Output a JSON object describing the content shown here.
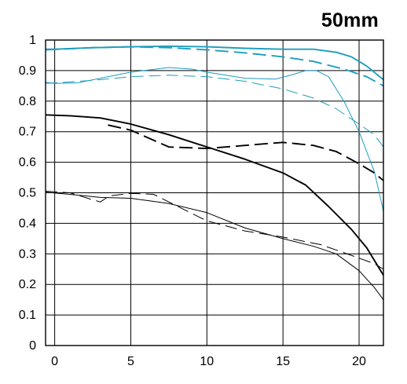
{
  "chart_data": {
    "type": "line",
    "title": "50mm",
    "xlabel": "",
    "ylabel": "",
    "xlim": [
      -0.6,
      21.6
    ],
    "ylim": [
      0,
      1.0
    ],
    "grid": true,
    "legend": "none",
    "x_ticks": [
      0,
      5,
      10,
      15,
      20
    ],
    "x_tick_labels": [
      "0",
      "5",
      "10",
      "15",
      "20"
    ],
    "y_ticks": [
      0,
      0.1,
      0.2,
      0.3,
      0.4,
      0.5,
      0.6,
      0.7,
      0.8,
      0.9,
      1.0
    ],
    "y_tick_labels": [
      "0",
      "0.1",
      "0.2",
      "0.3",
      "0.4",
      "0.5",
      "0.6",
      "0.7",
      "0.8",
      "0.9",
      "1"
    ],
    "colors": {
      "blue": "#1e9dbd",
      "black": "#000000",
      "grid": "#000000"
    },
    "series": [
      {
        "color": "blue",
        "style": "solid",
        "width": "thick",
        "points": [
          [
            -0.6,
            0.97
          ],
          [
            0,
            0.97
          ],
          [
            2.5,
            0.975
          ],
          [
            5,
            0.978
          ],
          [
            7.5,
            0.98
          ],
          [
            10,
            0.978
          ],
          [
            12.5,
            0.973
          ],
          [
            15,
            0.97
          ],
          [
            17,
            0.97
          ],
          [
            18.5,
            0.96
          ],
          [
            19.5,
            0.945
          ],
          [
            20.5,
            0.915
          ],
          [
            21.6,
            0.87
          ]
        ]
      },
      {
        "color": "blue",
        "style": "dashed",
        "width": "thick",
        "points": [
          [
            -0.6,
            0.968
          ],
          [
            2.5,
            0.975
          ],
          [
            5,
            0.978
          ],
          [
            7.5,
            0.975
          ],
          [
            10,
            0.968
          ],
          [
            12.5,
            0.958
          ],
          [
            15,
            0.945
          ],
          [
            17,
            0.93
          ],
          [
            19,
            0.905
          ],
          [
            20.5,
            0.88
          ],
          [
            21.6,
            0.85
          ]
        ]
      },
      {
        "color": "blue",
        "style": "solid",
        "width": "thin",
        "points": [
          [
            -0.6,
            0.862
          ],
          [
            0,
            0.858
          ],
          [
            1.5,
            0.86
          ],
          [
            3,
            0.875
          ],
          [
            5,
            0.895
          ],
          [
            7.5,
            0.91
          ],
          [
            9,
            0.905
          ],
          [
            10,
            0.895
          ],
          [
            12.5,
            0.875
          ],
          [
            14.5,
            0.872
          ],
          [
            15.5,
            0.885
          ],
          [
            16.5,
            0.9
          ],
          [
            17.2,
            0.9
          ],
          [
            18,
            0.88
          ],
          [
            19,
            0.8
          ],
          [
            20,
            0.7
          ],
          [
            21,
            0.57
          ],
          [
            21.6,
            0.44
          ]
        ]
      },
      {
        "color": "blue",
        "style": "dashed",
        "width": "thin",
        "points": [
          [
            -0.6,
            0.858
          ],
          [
            2.5,
            0.868
          ],
          [
            5,
            0.88
          ],
          [
            7.5,
            0.885
          ],
          [
            10,
            0.88
          ],
          [
            12.5,
            0.865
          ],
          [
            15,
            0.84
          ],
          [
            17,
            0.81
          ],
          [
            18.5,
            0.775
          ],
          [
            20,
            0.725
          ],
          [
            21,
            0.69
          ],
          [
            21.6,
            0.65
          ]
        ]
      },
      {
        "color": "black",
        "style": "solid",
        "width": "thick",
        "points": [
          [
            -0.6,
            0.755
          ],
          [
            1,
            0.752
          ],
          [
            3,
            0.745
          ],
          [
            5,
            0.725
          ],
          [
            7.5,
            0.69
          ],
          [
            10,
            0.65
          ],
          [
            12.5,
            0.61
          ],
          [
            15,
            0.565
          ],
          [
            16.5,
            0.525
          ],
          [
            18,
            0.455
          ],
          [
            19.5,
            0.38
          ],
          [
            20.5,
            0.32
          ],
          [
            21.6,
            0.23
          ]
        ]
      },
      {
        "color": "black",
        "style": "dashed",
        "width": "thick",
        "points": [
          [
            3.5,
            0.722
          ],
          [
            5,
            0.705
          ],
          [
            7.5,
            0.65
          ],
          [
            10,
            0.645
          ],
          [
            12.5,
            0.655
          ],
          [
            15,
            0.665
          ],
          [
            17,
            0.655
          ],
          [
            18.5,
            0.635
          ],
          [
            20,
            0.595
          ],
          [
            21,
            0.565
          ],
          [
            21.6,
            0.54
          ]
        ]
      },
      {
        "color": "black",
        "style": "solid",
        "width": "thin",
        "points": [
          [
            -0.6,
            0.502
          ],
          [
            1,
            0.495
          ],
          [
            3,
            0.485
          ],
          [
            5,
            0.482
          ],
          [
            7.5,
            0.465
          ],
          [
            10,
            0.435
          ],
          [
            12.5,
            0.385
          ],
          [
            15,
            0.35
          ],
          [
            17,
            0.325
          ],
          [
            18.5,
            0.3
          ],
          [
            20,
            0.245
          ],
          [
            21,
            0.19
          ],
          [
            21.6,
            0.15
          ]
        ]
      },
      {
        "color": "black",
        "style": "dashed",
        "width": "thin",
        "points": [
          [
            -0.6,
            0.505
          ],
          [
            1,
            0.5
          ],
          [
            2.3,
            0.48
          ],
          [
            3,
            0.47
          ],
          [
            3.6,
            0.49
          ],
          [
            5,
            0.498
          ],
          [
            6.5,
            0.495
          ],
          [
            7.5,
            0.47
          ],
          [
            10,
            0.408
          ],
          [
            12.5,
            0.375
          ],
          [
            15,
            0.355
          ],
          [
            17.5,
            0.33
          ],
          [
            19.5,
            0.295
          ],
          [
            21,
            0.268
          ],
          [
            21.6,
            0.25
          ]
        ]
      }
    ]
  }
}
